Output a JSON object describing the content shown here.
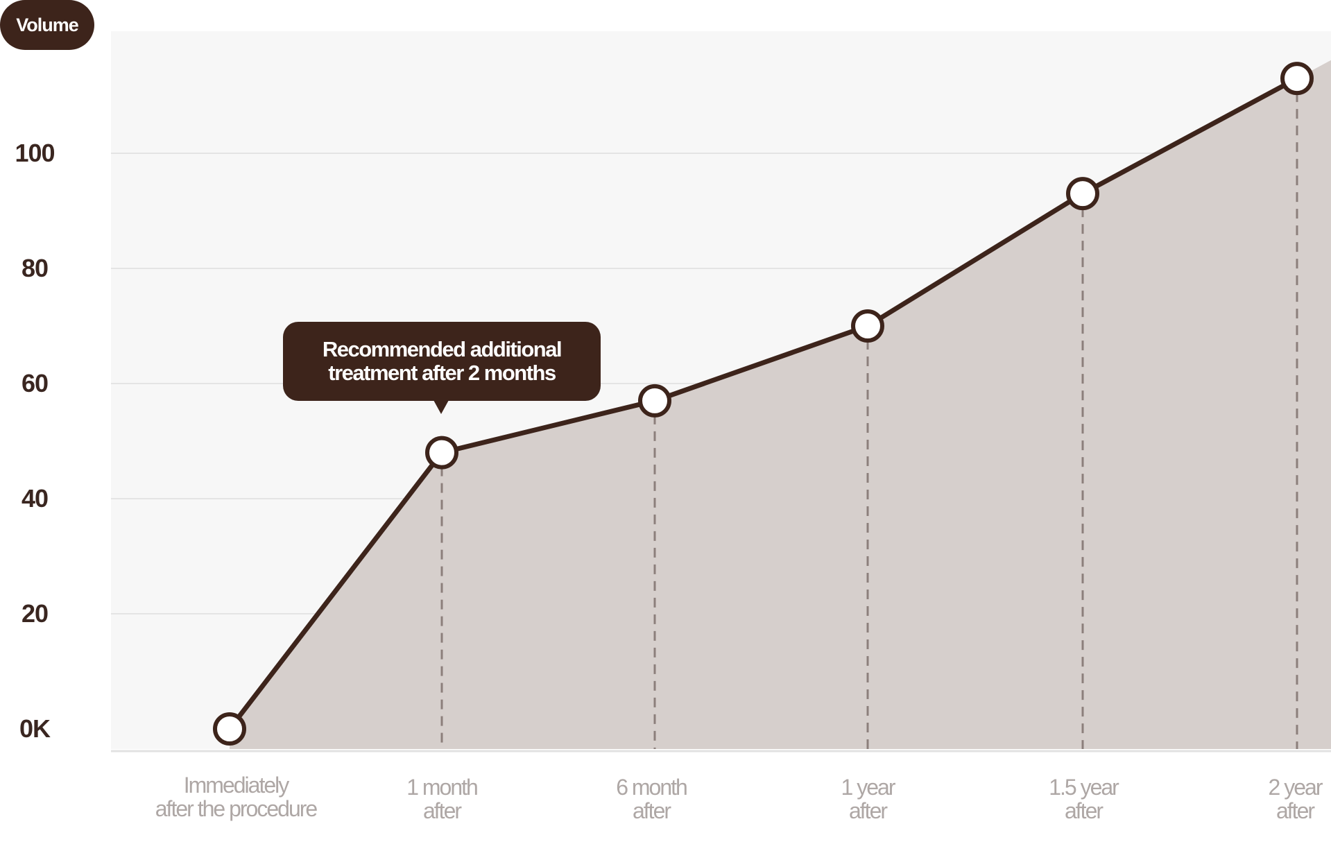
{
  "chart_data": {
    "type": "area",
    "ylabel": "Volume",
    "y_ticks": [
      "0K",
      "20",
      "40",
      "60",
      "80",
      "100"
    ],
    "ylim": [
      0,
      120
    ],
    "categories": [
      "Immediately\nafter the procedure",
      "1 month\nafter",
      "6 month\nafter",
      "1 year\nafter",
      "1.5 year\nafter",
      "2 year\nafter"
    ],
    "values": [
      0,
      48,
      57,
      70,
      93,
      113
    ],
    "annotation": {
      "text": "Recommended additional\ntreatment after 2 months",
      "category_index": 1
    },
    "grid": true,
    "colors": {
      "line": "#3d241b",
      "fill": "#d6cfcc",
      "plot_background": "#f7f7f7",
      "grid": "#e4e4e4",
      "dashed_guides": "#8c7f7b"
    }
  }
}
